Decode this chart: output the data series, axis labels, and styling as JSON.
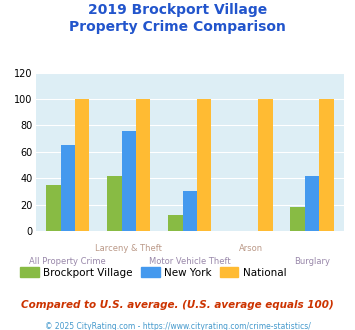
{
  "title": "2019 Brockport Village\nProperty Crime Comparison",
  "categories": [
    "All Property Crime",
    "Larceny & Theft",
    "Motor Vehicle Theft",
    "Arson",
    "Burglary"
  ],
  "x_top_labels": {
    "1": "Larceny & Theft",
    "3": "Arson"
  },
  "x_bottom_labels": {
    "0": "All Property Crime",
    "2": "Motor Vehicle Theft",
    "4": "Burglary"
  },
  "brockport": [
    35,
    42,
    12,
    0,
    18
  ],
  "new_york": [
    65,
    76,
    30,
    0,
    42
  ],
  "national": [
    100,
    100,
    100,
    100,
    100
  ],
  "colors": {
    "brockport": "#88bb44",
    "new_york": "#4499ee",
    "national": "#ffbb33"
  },
  "ylim": [
    0,
    120
  ],
  "yticks": [
    0,
    20,
    40,
    60,
    80,
    100,
    120
  ],
  "title_color": "#2255cc",
  "plot_bg_color": "#ddeef5",
  "legend_labels": [
    "Brockport Village",
    "New York",
    "National"
  ],
  "footnote1": "Compared to U.S. average. (U.S. average equals 100)",
  "footnote2": "© 2025 CityRating.com - https://www.cityrating.com/crime-statistics/",
  "footnote1_color": "#cc3300",
  "footnote2_color": "#4499cc",
  "xlabel_top_color": "#bb9988",
  "xlabel_bot_color": "#9988aa"
}
